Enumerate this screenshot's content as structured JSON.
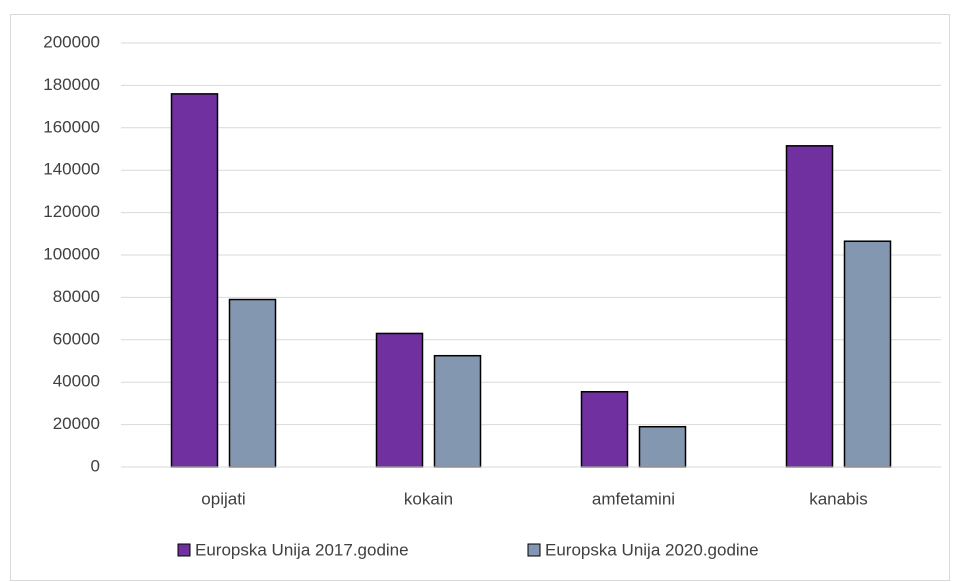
{
  "chart_data": {
    "type": "bar",
    "categories": [
      "opijati",
      "kokain",
      "amfetamini",
      "kanabis"
    ],
    "series": [
      {
        "name": "Europska Unija 2017.godine",
        "color": "#7030a0",
        "values": [
          176000,
          63000,
          35500,
          151500
        ]
      },
      {
        "name": "Europska Unija 2020.godine",
        "color": "#8497b0",
        "values": [
          79000,
          52500,
          19000,
          106500
        ]
      }
    ],
    "ylim": [
      0,
      200000
    ],
    "yticks": [
      0,
      20000,
      40000,
      60000,
      80000,
      100000,
      120000,
      140000,
      160000,
      180000,
      200000
    ],
    "grid": true,
    "legend": "bottom"
  }
}
